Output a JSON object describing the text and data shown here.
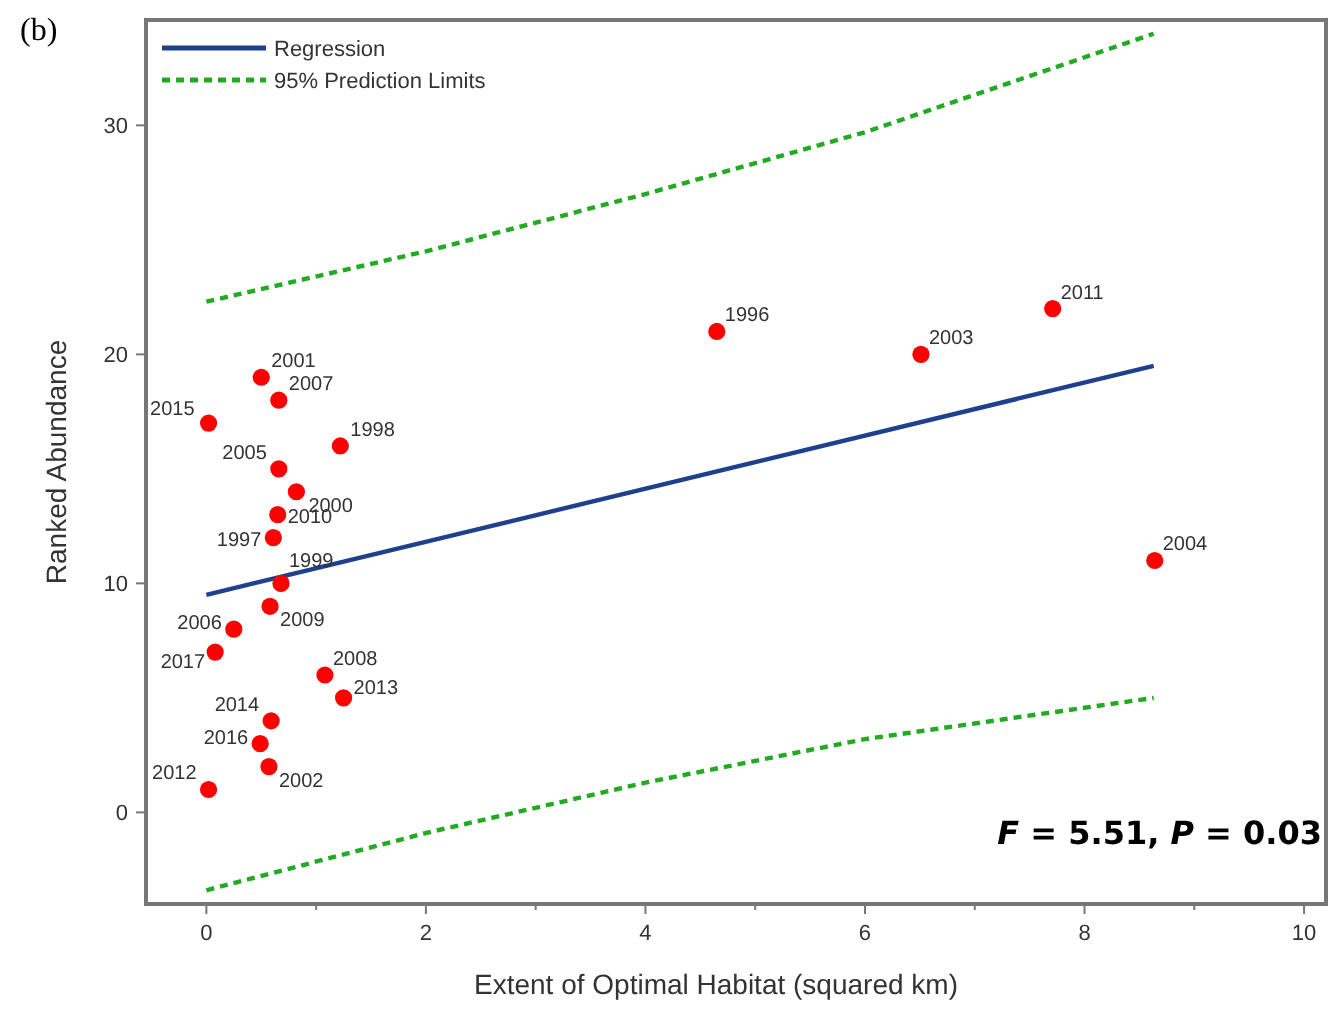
{
  "chart_data": {
    "type": "scatter",
    "xlabel": "Extent of Optimal Habitat (squared km)",
    "ylabel": "Ranked Abundance",
    "xlim": [
      -0.55,
      10.2
    ],
    "ylim": [
      -4,
      34.6
    ],
    "xticks": [
      0,
      {
        "value": 1,
        "label": null
      },
      2,
      {
        "value": 3,
        "label": null
      },
      4,
      {
        "value": 5,
        "label": null
      },
      6,
      {
        "value": 7,
        "label": null
      },
      8,
      {
        "value": 9,
        "label": null
      },
      10
    ],
    "yticks": [
      0,
      10,
      20,
      30
    ],
    "grid": false,
    "legend": "top left",
    "series": [
      {
        "color": "#ff0000",
        "marker": "circle",
        "x": [
          4.65,
          0.61,
          1.22,
          0.68,
          0.82,
          0.5,
          0.57,
          6.51,
          8.64,
          0.66,
          0.25,
          0.66,
          1.08,
          0.58,
          0.65,
          7.71,
          0.02,
          1.25,
          0.59,
          0.02,
          0.49,
          0.08
        ],
        "values": [
          21,
          12,
          16,
          10,
          14,
          19,
          2,
          20,
          11,
          15,
          8,
          18,
          6,
          9,
          13,
          22,
          1,
          5,
          4,
          17,
          3,
          7
        ]
      },
      {
        "type": "line",
        "name": "Regression",
        "color": "#1f3f8f",
        "line_style": "solid",
        "marker": "none",
        "x": [
          0,
          8.63
        ],
        "values": [
          9.5,
          19.5
        ]
      },
      {
        "type": "line",
        "name": "95% Prediction Limits",
        "color": "#22aa22",
        "line_style": "dashed",
        "marker": "none",
        "x": [
          0,
          2,
          4,
          6,
          8.63
        ],
        "values": [
          22.3,
          24.5,
          27.0,
          29.7,
          34.0
        ]
      },
      {
        "type": "line",
        "color": "#22aa22",
        "line_style": "dashed",
        "marker": "none",
        "x": [
          0,
          2,
          4,
          6,
          8.63
        ],
        "values": [
          -3.4,
          -0.9,
          1.3,
          3.2,
          5.0
        ]
      }
    ],
    "annotations": [
      "(b)",
      "F = 5.51, P = 0.03",
      {
        "text": "1996",
        "x": 4.65,
        "y": 21
      },
      {
        "text": "1997",
        "x": 0.61,
        "y": 12
      },
      {
        "text": "1998",
        "x": 1.22,
        "y": 16
      },
      {
        "text": "1999",
        "x": 0.68,
        "y": 10
      },
      {
        "text": "2000",
        "x": 0.82,
        "y": 14
      },
      {
        "text": "2001",
        "x": 0.5,
        "y": 19
      },
      {
        "text": "2002",
        "x": 0.57,
        "y": 2
      },
      {
        "text": "2003",
        "x": 6.51,
        "y": 20
      },
      {
        "text": "2004",
        "x": 8.64,
        "y": 11
      },
      {
        "text": "2005",
        "x": 0.66,
        "y": 15
      },
      {
        "text": "2006",
        "x": 0.25,
        "y": 8
      },
      {
        "text": "2007",
        "x": 0.66,
        "y": 18
      },
      {
        "text": "2008",
        "x": 1.08,
        "y": 6
      },
      {
        "text": "2009",
        "x": 0.58,
        "y": 9
      },
      {
        "text": "2010",
        "x": 0.65,
        "y": 13
      },
      {
        "text": "2011",
        "x": 7.71,
        "y": 22
      },
      {
        "text": "2012",
        "x": 0.02,
        "y": 1
      },
      {
        "text": "2013",
        "x": 1.25,
        "y": 5
      },
      {
        "text": "2014",
        "x": 0.59,
        "y": 4
      },
      {
        "text": "2015",
        "x": 0.02,
        "y": 17
      },
      {
        "text": "2016",
        "x": 0.49,
        "y": 3
      },
      {
        "text": "2017",
        "x": 0.08,
        "y": 7
      }
    ]
  }
}
